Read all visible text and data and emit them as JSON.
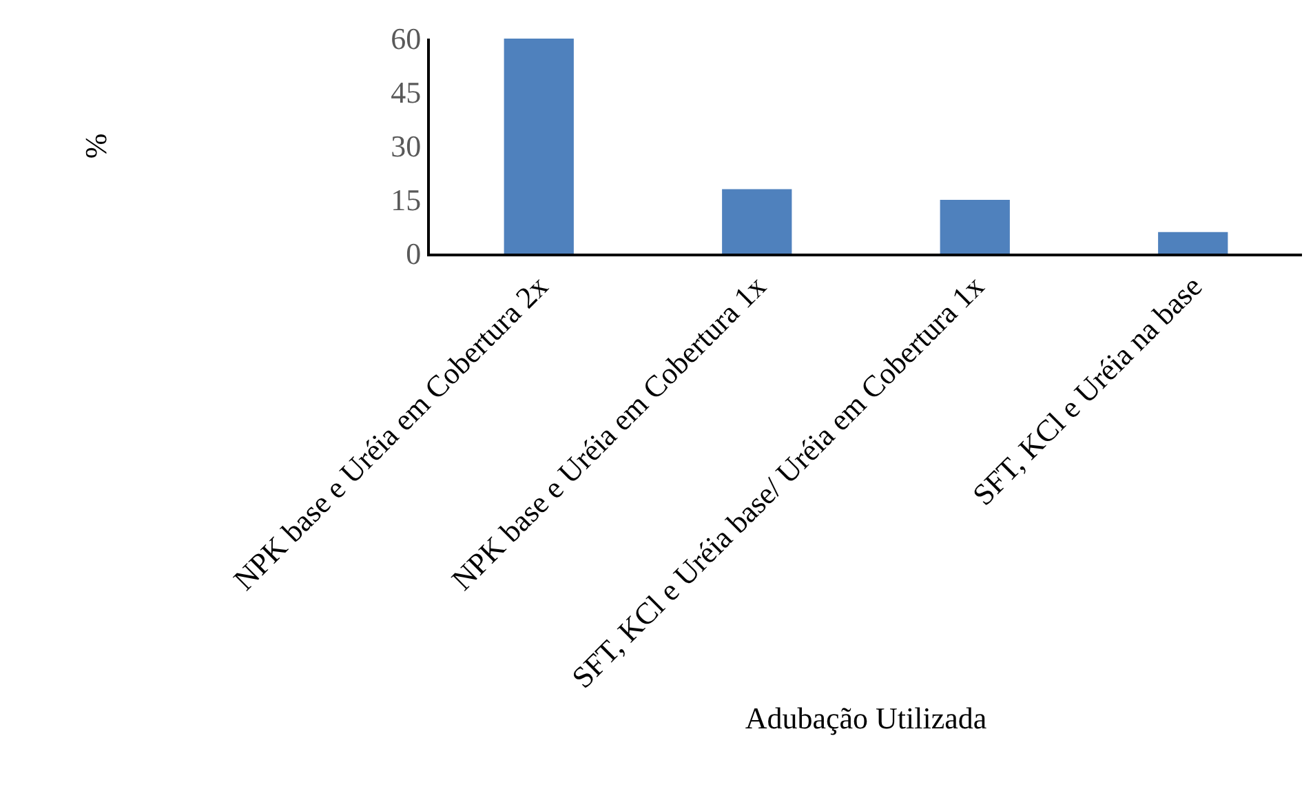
{
  "chart_data": {
    "type": "bar",
    "xlabel": "Adubação Utilizada",
    "ylabel": "%",
    "categories": [
      "NPK base e Uréia em Cobertura 2x",
      "NPK base e Uréia em Cobertura 1x",
      "SFT, KCl e Uréia base/ Uréia em Cobertura 1x",
      "SFT, KCl e Uréia na base"
    ],
    "values": [
      60,
      18,
      15,
      6
    ],
    "color": "#4f81bd",
    "ylim": [
      0,
      60
    ],
    "yticks": [
      0,
      15,
      30,
      45,
      60
    ],
    "grid": false,
    "legend": false
  }
}
